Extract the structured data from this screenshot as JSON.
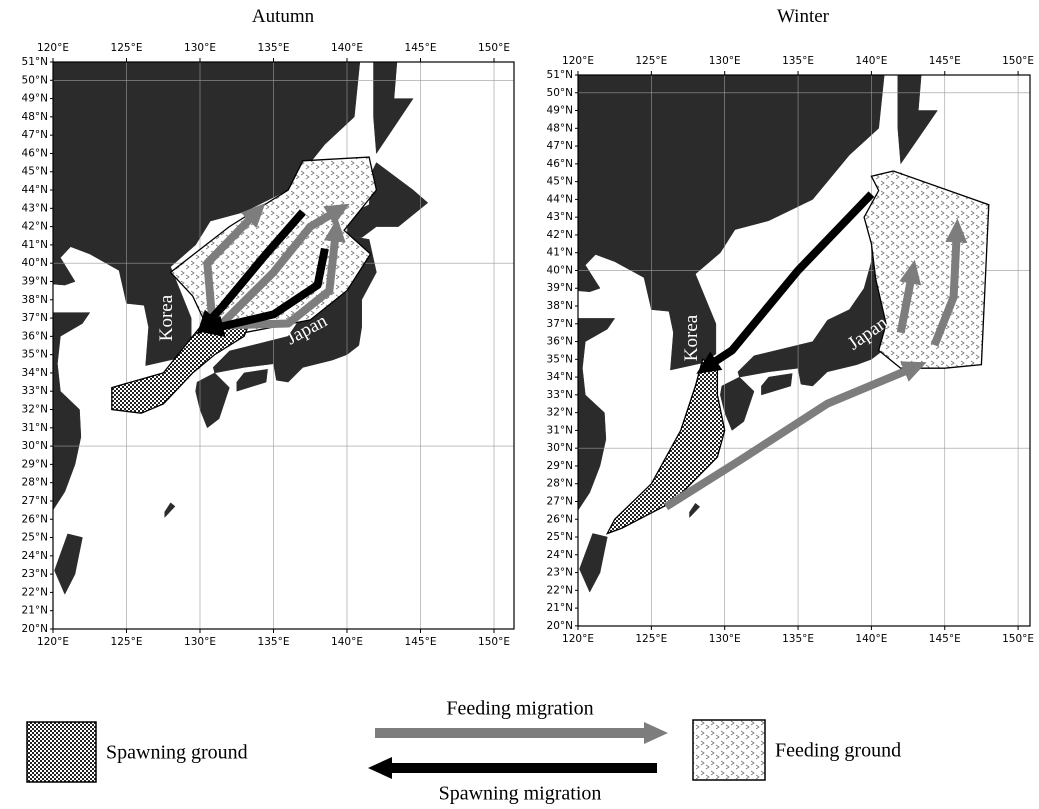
{
  "panels": [
    {
      "title": "Autumn",
      "lon_ticks": [
        "120°E",
        "125°E",
        "130°E",
        "135°E",
        "140°E",
        "145°E",
        "150°E"
      ],
      "lat_ticks": [
        "20°N",
        "21°N",
        "22°N",
        "23°N",
        "24°N",
        "25°N",
        "26°N",
        "27°N",
        "28°N",
        "29°N",
        "30°N",
        "31°N",
        "32°N",
        "33°N",
        "34°N",
        "35°N",
        "36°N",
        "37°N",
        "38°N",
        "39°N",
        "40°N",
        "41°N",
        "42°N",
        "43°N",
        "44°N",
        "45°N",
        "46°N",
        "47°N",
        "48°N",
        "49°N",
        "50°N",
        "51°N"
      ],
      "labels": [
        "Korea",
        "Japan"
      ]
    },
    {
      "title": "Winter",
      "lon_ticks": [
        "120°E",
        "125°E",
        "130°E",
        "135°E",
        "140°E",
        "145°E",
        "150°E"
      ],
      "lat_ticks": [
        "20°N",
        "21°N",
        "22°N",
        "23°N",
        "24°N",
        "25°N",
        "26°N",
        "27°N",
        "28°N",
        "29°N",
        "30°N",
        "31°N",
        "32°N",
        "33°N",
        "34°N",
        "35°N",
        "36°N",
        "37°N",
        "38°N",
        "39°N",
        "40°N",
        "41°N",
        "42°N",
        "43°N",
        "44°N",
        "45°N",
        "46°N",
        "47°N",
        "48°N",
        "49°N",
        "50°N",
        "51°N"
      ],
      "labels": [
        "Korea",
        "Japan"
      ]
    }
  ],
  "legend": {
    "spawning_ground": "Spawning ground",
    "feeding_migration": "Feeding migration",
    "feeding_ground": "Feeding ground",
    "spawning_migration": "Spawning migration"
  }
}
